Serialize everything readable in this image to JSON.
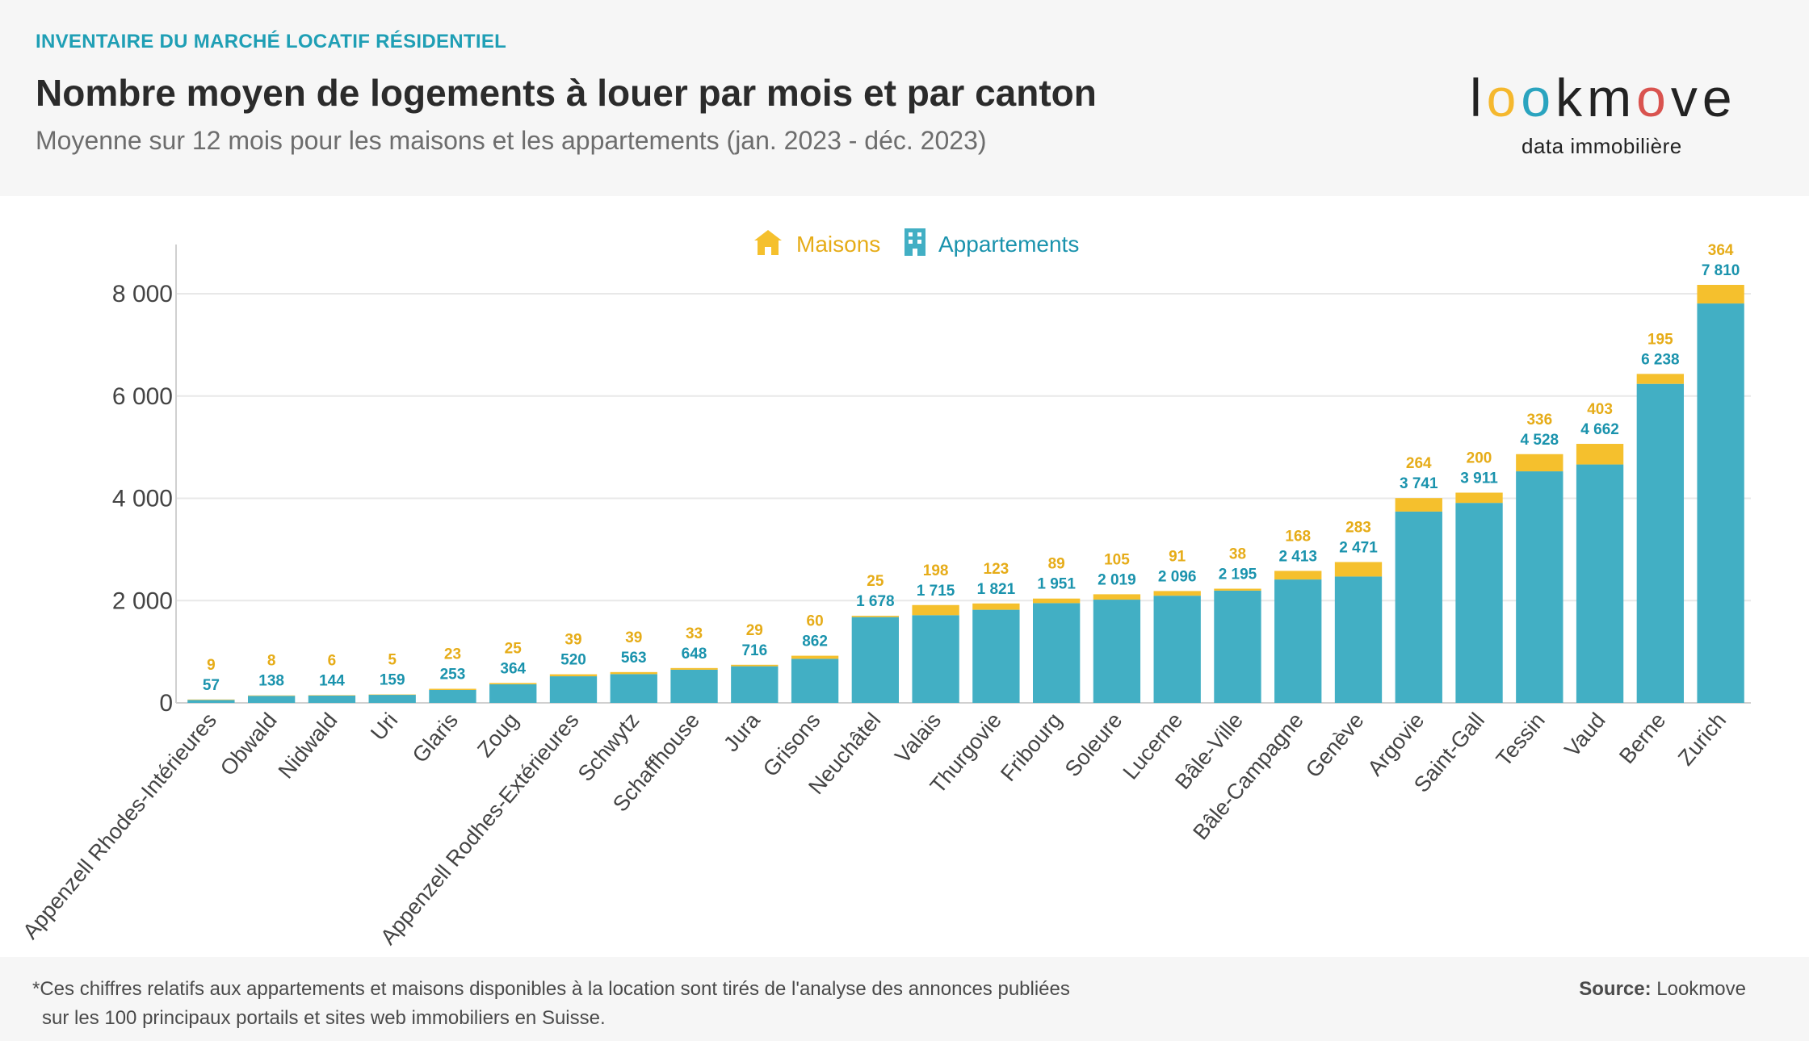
{
  "header": {
    "kicker": "INVENTAIRE DU MARCHÉ LOCATIF RÉSIDENTIEL",
    "title": "Nombre moyen de logements à louer par mois et par canton",
    "subtitle": "Moyenne sur 12 mois pour les maisons et les appartements (jan. 2023 - déc. 2023)"
  },
  "logo": {
    "letters": [
      "l",
      "o",
      "o",
      "k",
      "m",
      "o",
      "v",
      "e"
    ],
    "letter_colors": [
      "#222222",
      "#f5b82e",
      "#2aa4bf",
      "#222222",
      "#222222",
      "#d9534f",
      "#222222",
      "#222222"
    ],
    "tagline": "data immobilière"
  },
  "colors": {
    "houses": "#f5c02d",
    "apartments": "#42afc4",
    "houses_text": "#e6ac18",
    "apartments_text": "#1a93ad",
    "grid": "#e8e8e8"
  },
  "legend": {
    "houses_icon": "house-icon",
    "apartments_icon": "building-icon"
  },
  "footer": {
    "note_line1": "*Ces chiffres relatifs aux appartements et maisons disponibles à la location sont tirés de l'analyse des annonces publiées",
    "note_line2": "sur les 100 principaux portails et sites web immobiliers en Suisse.",
    "source_label": "Source:",
    "source_value": "Lookmove"
  },
  "chart_data": {
    "type": "bar",
    "stacked": true,
    "categories": [
      "Appenzell Rhodes-Intérieures",
      "Obwald",
      "Nidwald",
      "Uri",
      "Glaris",
      "Zoug",
      "Appenzell Rodhes-Extérieures",
      "Schwytz",
      "Schaffhouse",
      "Jura",
      "Grisons",
      "Neuchâtel",
      "Valais",
      "Thurgovie",
      "Fribourg",
      "Soleure",
      "Lucerne",
      "Bâle-Ville",
      "Bâle-Campagne",
      "Genève",
      "Argovie",
      "Saint-Gall",
      "Tessin",
      "Vaud",
      "Berne",
      "Zurich"
    ],
    "series": [
      {
        "name": "Appartements",
        "values": [
          57,
          138,
          144,
          159,
          253,
          364,
          520,
          563,
          648,
          716,
          862,
          1678,
          1715,
          1821,
          1951,
          2019,
          2096,
          2195,
          2413,
          2471,
          3741,
          3911,
          4528,
          4662,
          6238,
          7810
        ]
      },
      {
        "name": "Maisons",
        "values": [
          9,
          8,
          6,
          5,
          23,
          25,
          39,
          39,
          33,
          29,
          60,
          25,
          198,
          123,
          89,
          105,
          91,
          38,
          168,
          283,
          264,
          200,
          336,
          403,
          195,
          364
        ]
      }
    ],
    "data_labels": {
      "Appartements": [
        "57",
        "138",
        "144",
        "159",
        "253",
        "364",
        "520",
        "563",
        "648",
        "716",
        "862",
        "1 678",
        "1 715",
        "1 821",
        "1 951",
        "2 019",
        "2 096",
        "2 195",
        "2 413",
        "2 471",
        "3 741",
        "3 911",
        "4 528",
        "4 662",
        "6 238",
        "7 810"
      ],
      "Maisons": [
        "9",
        "8",
        "6",
        "5",
        "23",
        "25",
        "39",
        "39",
        "33",
        "29",
        "60",
        "25",
        "198",
        "123",
        "89",
        "105",
        "91",
        "38",
        "168",
        "283",
        "264",
        "200",
        "336",
        "403",
        "195",
        "364"
      ]
    },
    "y_ticks": [
      0,
      2000,
      4000,
      6000,
      8000
    ],
    "y_tick_labels": [
      "0",
      "2 000",
      "4 000",
      "6 000",
      "8 000"
    ],
    "ylim": [
      0,
      8900
    ],
    "grid": true,
    "legend_position": "top-center",
    "xlabel": "",
    "ylabel": ""
  }
}
